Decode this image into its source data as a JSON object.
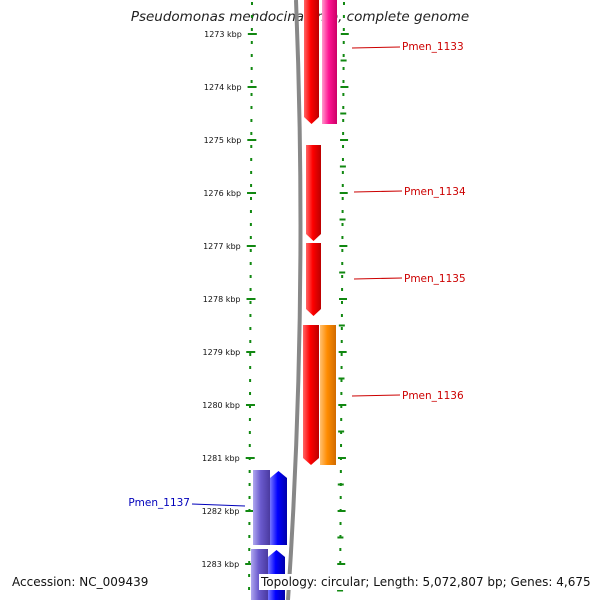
{
  "title": "Pseudomonas mendocina ymp, complete genome",
  "accession": "Accession: NC_009439",
  "summary": "Topology: circular; Length: 5,072,807 bp; Genes: 4,675",
  "ruler": {
    "unit": "kbp",
    "ticks": [
      {
        "label": "1273 kbp",
        "kbp": 1273
      },
      {
        "label": "1274 kbp",
        "kbp": 1274
      },
      {
        "label": "1275 kbp",
        "kbp": 1275
      },
      {
        "label": "1276 kbp",
        "kbp": 1276
      },
      {
        "label": "1277 kbp",
        "kbp": 1277
      },
      {
        "label": "1278 kbp",
        "kbp": 1278
      },
      {
        "label": "1279 kbp",
        "kbp": 1279
      },
      {
        "label": "1280 kbp",
        "kbp": 1280
      },
      {
        "label": "1281 kbp",
        "kbp": 1281
      },
      {
        "label": "1282 kbp",
        "kbp": 1282
      },
      {
        "label": "1283 kbp",
        "kbp": 1283
      }
    ]
  },
  "genes": [
    {
      "name": "Pmen_1133",
      "color": "#cc0000"
    },
    {
      "name": "Pmen_1134",
      "color": "#cc0000"
    },
    {
      "name": "Pmen_1135",
      "color": "#cc0000"
    },
    {
      "name": "Pmen_1136",
      "color": "#cc0000"
    },
    {
      "name": "Pmen_1137",
      "color": "#0000bb"
    }
  ],
  "colors": {
    "forward_gene": "#ff0000",
    "cog_pink": "#ff1493",
    "cog_orange": "#ff8c00",
    "reverse_gene": "#0000ff",
    "cog_purple": "#6a5acd",
    "tick_green": "#118811",
    "backbone": "#888888"
  }
}
